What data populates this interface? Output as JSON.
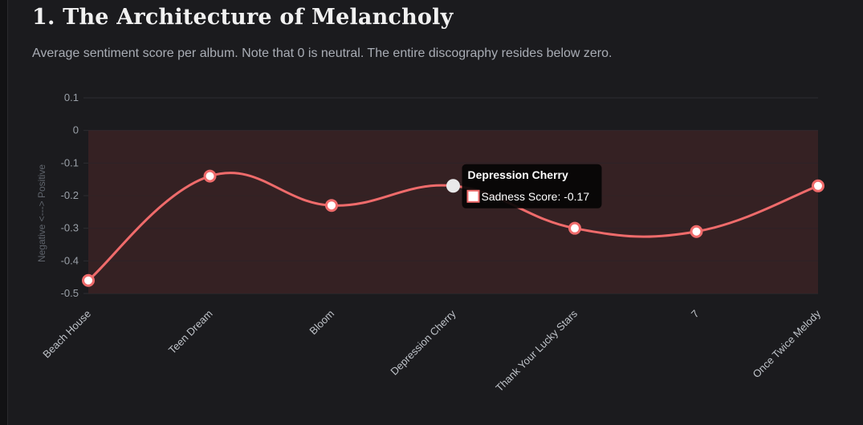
{
  "header": {
    "title": "1. The Architecture of Melancholy",
    "subtitle": "Average sentiment score per album. Note that 0 is neutral. The entire discography resides below zero."
  },
  "chart_data": {
    "type": "line",
    "categories": [
      "Beach House",
      "Teen Dream",
      "Bloom",
      "Depression Cherry",
      "Thank Your Lucky Stars",
      "7",
      "Once Twice Melody"
    ],
    "series": [
      {
        "name": "Sadness Score",
        "values": [
          -0.46,
          -0.14,
          -0.23,
          -0.17,
          -0.3,
          -0.31,
          -0.17
        ]
      }
    ],
    "ylabel": "Negative <---> Positive",
    "xlabel": "",
    "ylim": [
      -0.5,
      0.1
    ],
    "yticks": [
      "0.1",
      "0",
      "-0.1",
      "-0.2",
      "-0.3",
      "-0.4",
      "-0.5"
    ],
    "grid": true,
    "smooth": true,
    "negative_region_shaded": true,
    "line_color": "#ef6b6b",
    "point_fill": "#ffffff",
    "shade_color": "#3a2224",
    "tooltip": {
      "title": "Depression Cherry",
      "label": "Sadness Score: -0.17",
      "index": 3
    }
  }
}
